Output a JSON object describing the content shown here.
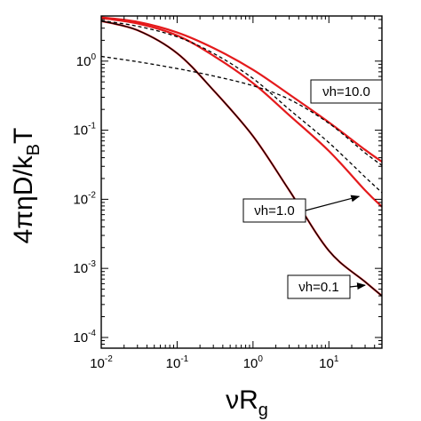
{
  "chart_data": {
    "type": "line",
    "xlabel": {
      "main": "νR",
      "sub": "g"
    },
    "ylabel": {
      "main": "4πηD/k",
      "sub": "B",
      "tail": "T"
    },
    "x_scale": "log",
    "y_scale": "log",
    "xlim": [
      0.01,
      50
    ],
    "ylim": [
      7e-05,
      4.5
    ],
    "x_ticks": [
      {
        "value": 0.01,
        "base": "10",
        "exp": "-2"
      },
      {
        "value": 0.1,
        "base": "10",
        "exp": "-1"
      },
      {
        "value": 1,
        "base": "10",
        "exp": "0"
      },
      {
        "value": 10,
        "base": "10",
        "exp": "1"
      }
    ],
    "y_ticks": [
      {
        "value": 0.0001,
        "base": "10",
        "exp": "-4"
      },
      {
        "value": 0.001,
        "base": "10",
        "exp": "-3"
      },
      {
        "value": 0.01,
        "base": "10",
        "exp": "-2"
      },
      {
        "value": 0.1,
        "base": "10",
        "exp": "-1"
      },
      {
        "value": 1,
        "base": "10",
        "exp": "0"
      }
    ],
    "grid": false,
    "series": [
      {
        "style": "solid",
        "color": "#e41a1c",
        "x": [
          0.01,
          0.03,
          0.1,
          0.3,
          1,
          3,
          10,
          30,
          50
        ],
        "y": [
          4.3,
          3.7,
          2.6,
          1.55,
          0.75,
          0.33,
          0.13,
          0.052,
          0.035
        ]
      },
      {
        "style": "solid",
        "color": "#e41a1c",
        "x": [
          0.01,
          0.03,
          0.1,
          0.3,
          1,
          3,
          10,
          30,
          50
        ],
        "y": [
          4.2,
          3.5,
          2.35,
          1.2,
          0.48,
          0.165,
          0.05,
          0.0135,
          0.0078
        ]
      },
      {
        "style": "solid",
        "color": "#e41a1c",
        "x": [
          0.01,
          0.03,
          0.1,
          0.3,
          1,
          3,
          10,
          30,
          50
        ],
        "y": [
          3.8,
          2.8,
          1.3,
          0.38,
          0.082,
          0.0135,
          0.0018,
          0.00064,
          0.0004
        ]
      },
      {
        "style": "solid",
        "color": "#000000",
        "x": [
          0.01,
          0.03,
          0.1,
          0.3,
          1,
          3,
          10,
          30,
          50
        ],
        "y": [
          3.8,
          2.8,
          1.3,
          0.38,
          0.082,
          0.0135,
          0.0018,
          0.00064,
          0.0004
        ]
      },
      {
        "style": "dashed",
        "color": "#000000",
        "x": [
          0.01,
          0.03,
          0.1,
          0.3,
          1,
          3,
          10,
          30,
          50
        ],
        "y": [
          1.17,
          0.98,
          0.78,
          0.61,
          0.44,
          0.28,
          0.126,
          0.047,
          0.031
        ]
      },
      {
        "style": "dashed",
        "color": "#000000",
        "x": [
          0.01,
          0.03,
          0.1,
          0.3,
          1,
          3,
          10,
          30,
          50
        ],
        "y": [
          3.85,
          3.2,
          2.25,
          1.3,
          0.56,
          0.2,
          0.066,
          0.021,
          0.0125
        ]
      }
    ],
    "annotations": [
      {
        "text": "νh=10.0",
        "arrow": false
      },
      {
        "text": "νh=1.0",
        "arrow": true,
        "target": [
          25,
          0.011
        ]
      },
      {
        "text": "νh=0.1",
        "arrow": true,
        "target": [
          30,
          0.00057
        ]
      }
    ]
  }
}
